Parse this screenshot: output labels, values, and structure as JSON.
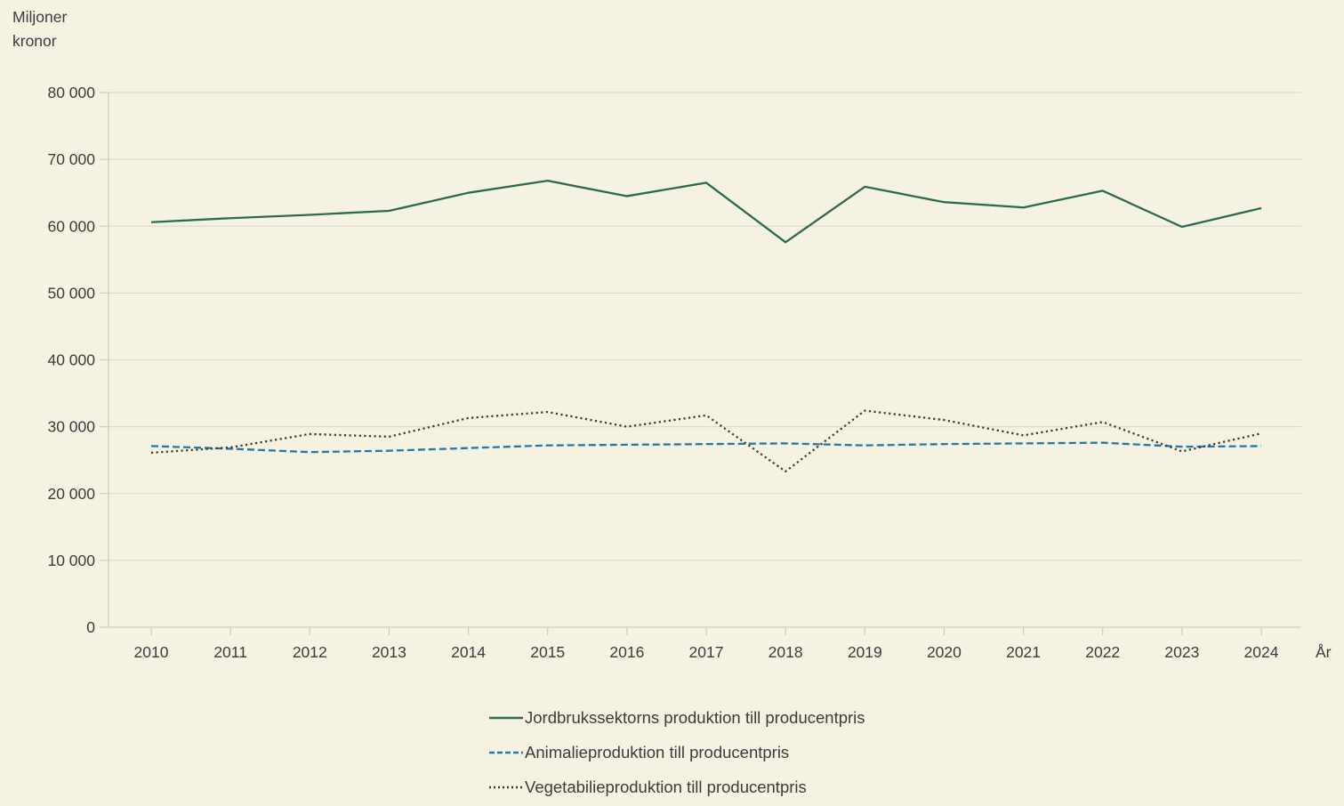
{
  "y_axis_title": {
    "line1": "Miljoner",
    "line2": "kronor"
  },
  "colors": {
    "background": "#f6f2e2",
    "gridline": "#dcd9cf",
    "axis_line": "#cfccc2",
    "text": "#3b3b3b",
    "series_jordbruk": "#2a6b50",
    "series_animalie": "#1e7ca0",
    "series_vegetabilie": "#3f3b2e"
  },
  "chart_data": {
    "type": "line",
    "title": "Miljoner kronor",
    "xlabel": "År",
    "ylabel": "Miljoner kronor",
    "grid": true,
    "legend_position": "bottom",
    "ylim": [
      0,
      80000
    ],
    "ytick_step": 10000,
    "y_tick_labels": [
      "0",
      "10 000",
      "20 000",
      "30 000",
      "40 000",
      "50 000",
      "60 000",
      "70 000",
      "80 000"
    ],
    "x": [
      "2010",
      "2011",
      "2012",
      "2013",
      "2014",
      "2015",
      "2016",
      "2017",
      "2018",
      "2019",
      "2020",
      "2021",
      "2022",
      "2023",
      "2024"
    ],
    "series": [
      {
        "name": "Jordbrukssektorns produktion till producentpris",
        "style": "solid",
        "color": "#2a6b50",
        "values": [
          60600,
          61200,
          61700,
          62300,
          65000,
          66800,
          64500,
          66500,
          57600,
          65900,
          63600,
          62800,
          65300,
          59900,
          62700
        ]
      },
      {
        "name": "Animalieproduktion till producentpris",
        "style": "dashed",
        "color": "#1e7ca0",
        "values": [
          27100,
          26700,
          26200,
          26400,
          26800,
          27200,
          27300,
          27400,
          27500,
          27200,
          27400,
          27500,
          27600,
          27000,
          27100
        ]
      },
      {
        "name": "Vegetabilieproduktion till producentpris",
        "style": "dotted",
        "color": "#3f3b2e",
        "values": [
          26100,
          26900,
          28900,
          28500,
          31300,
          32200,
          30000,
          31700,
          23300,
          32400,
          31000,
          28700,
          30700,
          26300,
          29000
        ]
      }
    ]
  }
}
